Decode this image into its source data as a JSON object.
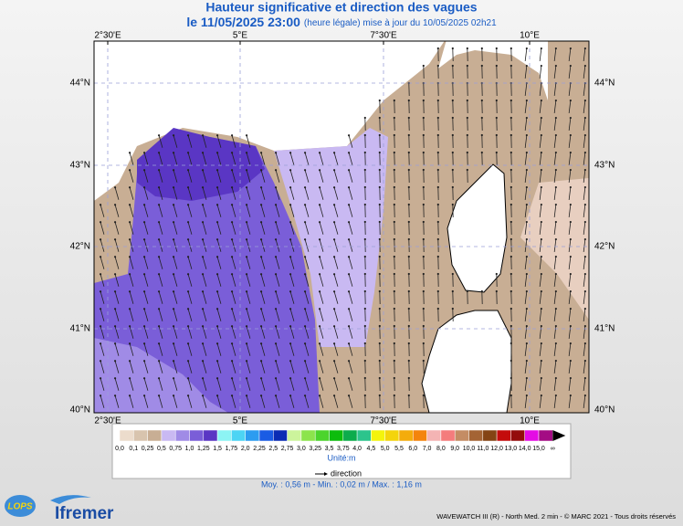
{
  "header": {
    "title": "Hauteur significative et direction des vagues",
    "date": "le 11/05/2025 23:00",
    "update": "(heure légale) mise à jour du 10/05/2025 02h21"
  },
  "map": {
    "lon_labels": [
      "2°30'E",
      "5°E",
      "7°30'E",
      "10°E"
    ],
    "lat_labels": [
      "44°N",
      "43°N",
      "42°N",
      "41°N",
      "40°N"
    ]
  },
  "legend": {
    "labels": [
      "0,0",
      "0,1",
      "0,25",
      "0,5",
      "0,75",
      "1,0",
      "1,25",
      "1,5",
      "1,75",
      "2,0",
      "2,25",
      "2,5",
      "2,75",
      "3,0",
      "3,25",
      "3,5",
      "3,75",
      "4,0",
      "4,5",
      "5,0",
      "5,5",
      "6,0",
      "7,0",
      "8,0",
      "9,0",
      "10,0",
      "11,0",
      "12,0",
      "13,0",
      "14,0",
      "15,0",
      "∞"
    ],
    "colors": [
      "#ecdccc",
      "#d8c4ae",
      "#c8ae94",
      "#c9b9f2",
      "#a08be6",
      "#7a5ed8",
      "#5a36c4",
      "#8cf4f4",
      "#4cd4f4",
      "#2c9cf0",
      "#1a5ce4",
      "#0a2cb4",
      "#ccf49c",
      "#8ce44c",
      "#4cd42c",
      "#0cbc0c",
      "#0cac4c",
      "#2cc48c",
      "#f4f40c",
      "#f4d40c",
      "#f4ac0c",
      "#f4840c",
      "#f4b4b4",
      "#f47c7c",
      "#c48c64",
      "#a46434",
      "#844414",
      "#c40c0c",
      "#940c0c",
      "#e40ce4",
      "#a40c84"
    ],
    "unit": "Unité:m",
    "direction": "direction",
    "stats": "Moy. : 0,56 m   -   Min. : 0,02 m / Max. : 1,16 m"
  },
  "footer": {
    "lops": "LOPS",
    "ifremer": "Ifremer",
    "credit": "WAVEWATCH III (R) - North Med. 2 min - © MARC 2021 - Tous droits réservés"
  }
}
